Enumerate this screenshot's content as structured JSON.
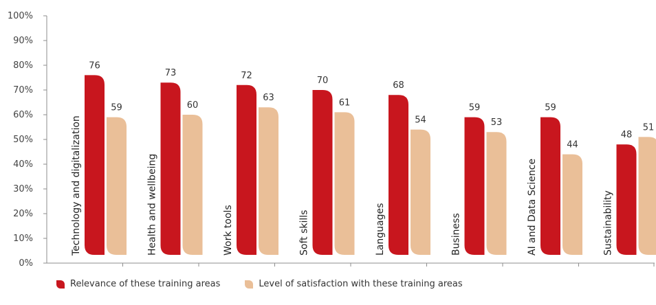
{
  "chart_data": {
    "type": "bar",
    "categories": [
      "Technology and digitalization",
      "Health and wellbeing",
      "Work tools",
      "Soft skills",
      "Languages",
      "Business",
      "AI and Data Science",
      "Sustainability"
    ],
    "series": [
      {
        "name": "Relevance of these training areas",
        "values": [
          76,
          73,
          72,
          70,
          68,
          59,
          59,
          48
        ],
        "color": "#c8161e"
      },
      {
        "name": "Level of satisfaction with these training areas",
        "values": [
          59,
          60,
          63,
          61,
          54,
          53,
          44,
          51
        ],
        "color": "#eabf98"
      }
    ],
    "yticks": [
      "0%",
      "10%",
      "20%",
      "30%",
      "40%",
      "50%",
      "60%",
      "70%",
      "80%",
      "90%",
      "100%"
    ],
    "ylim": [
      0,
      100
    ],
    "grid": false,
    "legend_position": "bottom-left"
  }
}
